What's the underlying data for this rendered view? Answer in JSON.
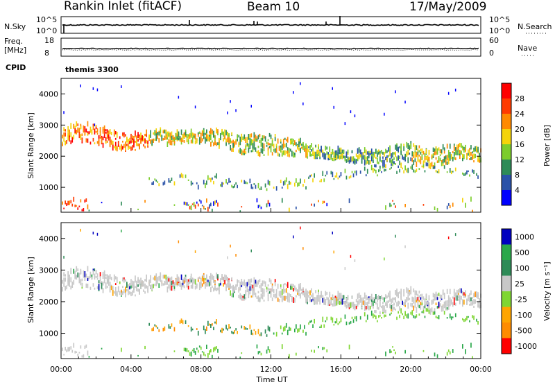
{
  "header": {
    "station": "Rankin Inlet (fitACF)",
    "beam": "Beam 10",
    "date": "17/May/2009"
  },
  "panels": {
    "sky": {
      "left_label": "N.Sky",
      "left_top": "10^5",
      "left_bottom": "10^0",
      "right_label": "N.Search",
      "right_top": "10^5",
      "right_bottom": "10^0"
    },
    "freq": {
      "left_label": "Freq.",
      "left_unit": "[MHz]",
      "left_top": "18",
      "left_bottom": "8",
      "right_label": "Nave",
      "right_top": "60",
      "right_bottom": "0"
    },
    "cpid": {
      "label": "CPID",
      "value": "themis 3300"
    }
  },
  "colors": {
    "power": [
      "#0000ff",
      "#2a52a8",
      "#2e8b57",
      "#7ccd2c",
      "#f4d40a",
      "#ff8a00",
      "#ff3b00",
      "#ff0000"
    ],
    "velocity": [
      "#ff0000",
      "#ff8c00",
      "#ffa500",
      "#7fd632",
      "#c8c8c8",
      "#2e8b57",
      "#2aa84a",
      "#0000c0"
    ],
    "gray_scatter": "#c8c8c8"
  },
  "chart_data": [
    {
      "type": "heatmap",
      "name": "power",
      "ylabel": "Slant Range [km]",
      "xlabel": "",
      "xlim": [
        0,
        24
      ],
      "ylim": [
        200,
        4500
      ],
      "yticks": [
        1000,
        2000,
        3000,
        4000
      ],
      "colorbar": {
        "label": "Power [dB]",
        "ticks": [
          "4",
          "8",
          "12",
          "16",
          "20",
          "24",
          "28"
        ]
      }
    },
    {
      "type": "heatmap",
      "name": "velocity",
      "ylabel": "Slant Range [km]",
      "xlabel": "Time UT",
      "xlim": [
        0,
        24
      ],
      "ylim": [
        200,
        4500
      ],
      "yticks": [
        1000,
        2000,
        3000,
        4000
      ],
      "xticks": [
        "00:00",
        "04:00",
        "08:00",
        "12:00",
        "16:00",
        "20:00",
        "00:00"
      ],
      "colorbar": {
        "label": "Velocity [m s⁻¹]",
        "ticks": [
          "1000",
          "500",
          "100",
          "25",
          "-25",
          "-100",
          "-500",
          "-1000"
        ]
      }
    }
  ]
}
